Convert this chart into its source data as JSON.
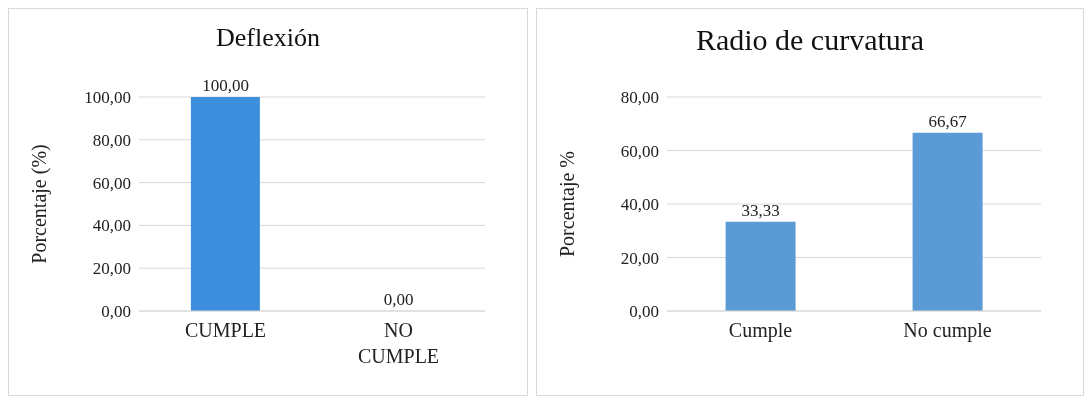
{
  "chart_data": [
    {
      "type": "bar",
      "title": "Deflexión",
      "ylabel": "Porcentaje (%)",
      "categories": [
        "CUMPLE",
        "NO CUMPLE"
      ],
      "values": [
        100,
        0
      ],
      "color": "#3d8fdd",
      "value_labels": [
        "100,00",
        "0,00"
      ],
      "ylim": [
        0,
        100
      ],
      "yticks": [
        {
          "value": 0,
          "label": "0,00"
        },
        {
          "value": 20,
          "label": "20,00"
        },
        {
          "value": 40,
          "label": "40,00"
        },
        {
          "value": 60,
          "label": "60,00"
        },
        {
          "value": 80,
          "label": "80,00"
        },
        {
          "value": 100,
          "label": "100,00"
        }
      ],
      "grid": "y"
    },
    {
      "type": "bar",
      "title": "Radio de curvatura",
      "ylabel": "Porcentaje %",
      "categories": [
        "Cumple",
        "No cumple"
      ],
      "values": [
        33.33,
        66.67
      ],
      "color": "#5b9bd5",
      "value_labels": [
        "33,33",
        "66,67"
      ],
      "ylim": [
        0,
        80
      ],
      "yticks": [
        {
          "value": 0,
          "label": "0,00"
        },
        {
          "value": 20,
          "label": "20,00"
        },
        {
          "value": 40,
          "label": "40,00"
        },
        {
          "value": 60,
          "label": "60,00"
        },
        {
          "value": 80,
          "label": "80,00"
        }
      ],
      "grid": "y"
    }
  ]
}
